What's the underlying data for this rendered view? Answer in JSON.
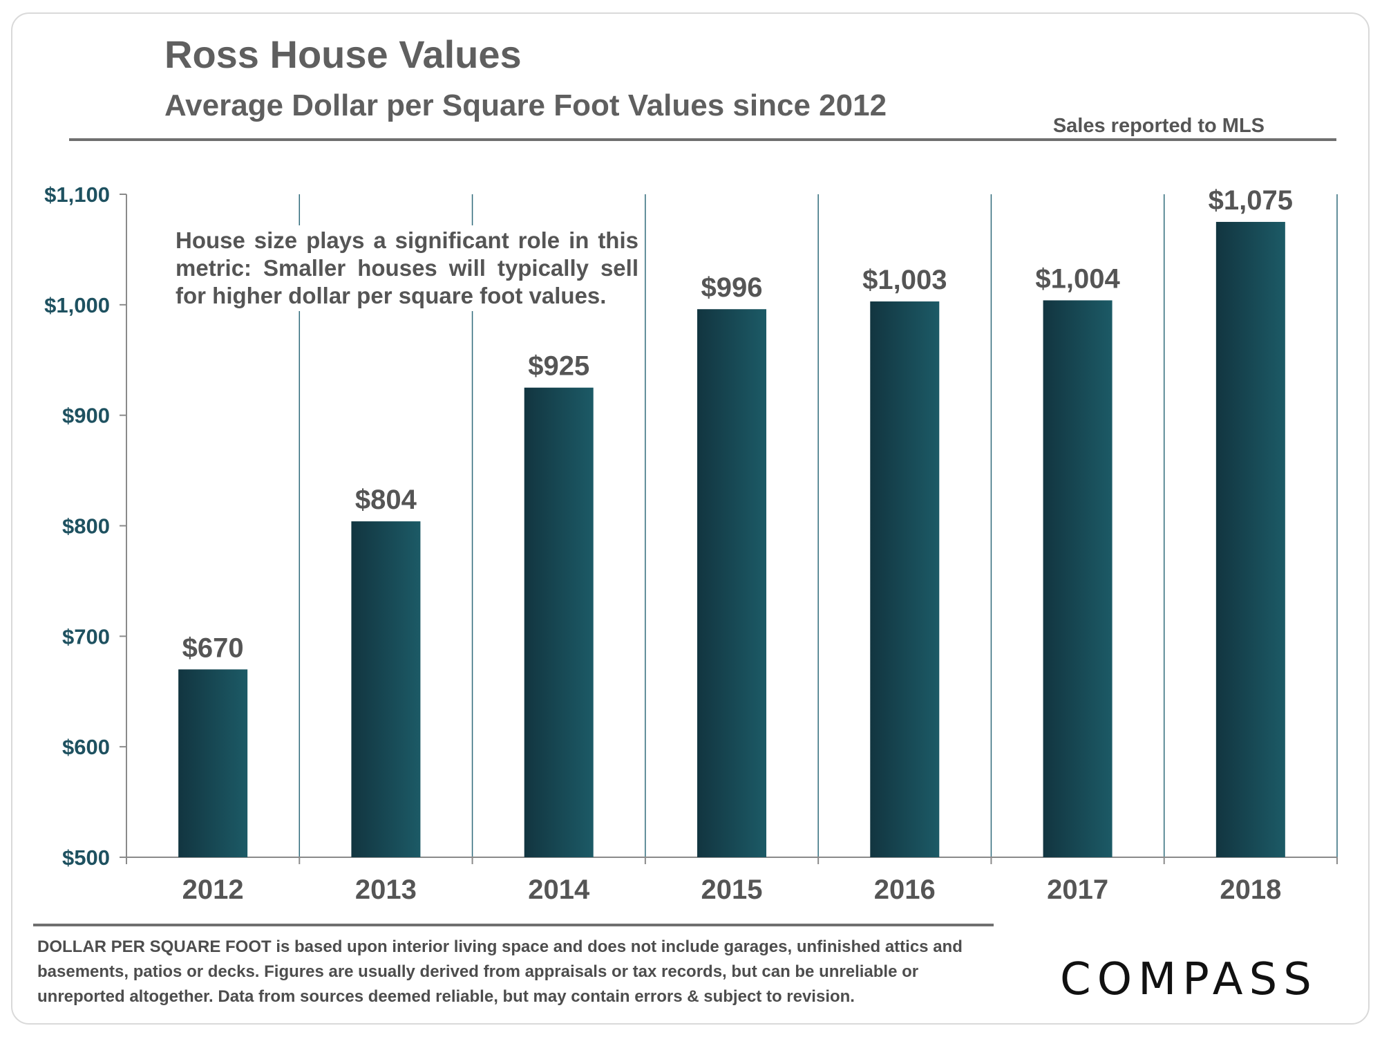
{
  "header": {
    "title": "Ross House Values",
    "subtitle": "Average Dollar per Square Foot Values since 2012",
    "source_note": "Sales reported to MLS"
  },
  "annotation": "House size plays a significant role in this metric: Smaller houses will typically sell for higher dollar per square foot values.",
  "footnote": "DOLLAR PER SQUARE FOOT is based upon interior living space and does not include garages, unfinished attics and basements, patios or decks. Figures are usually derived from appraisals or tax records, but can be unreliable or unreported altogether. Data from sources deemed reliable, but may contain errors & subject to revision.",
  "logo_text": "COMPASS",
  "colors": {
    "bar_dark": "#123540",
    "bar_light": "#1c5a66",
    "axis_label": "#1e5160",
    "grid": "#2f6a7a",
    "text": "#555555"
  },
  "chart_data": {
    "type": "bar",
    "categories": [
      "2012",
      "2013",
      "2014",
      "2015",
      "2016",
      "2017",
      "2018"
    ],
    "values": [
      670,
      804,
      925,
      996,
      1003,
      1004,
      1075
    ],
    "value_labels": [
      "$670",
      "$804",
      "$925",
      "$996",
      "$1,003",
      "$1,004",
      "$1,075"
    ],
    "ylim": [
      500,
      1100
    ],
    "yticks": [
      500,
      600,
      700,
      800,
      900,
      1000,
      1100
    ],
    "ytick_labels": [
      "$500",
      "$600",
      "$700",
      "$800",
      "$900",
      "$1,000",
      "$1,100"
    ],
    "xlabel": "",
    "ylabel": "",
    "grid": "vertical separators between categories",
    "legend": "none"
  }
}
